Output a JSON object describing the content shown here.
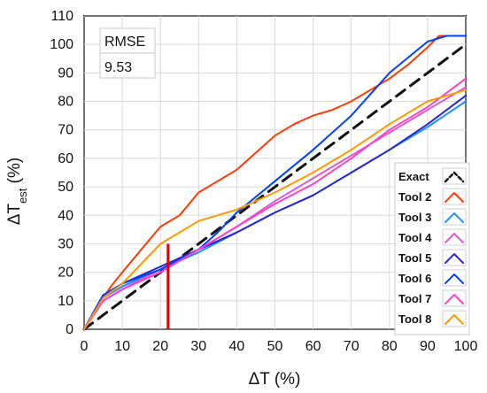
{
  "chart_data": {
    "type": "line",
    "x_label": "ΔT (%)",
    "y_label_prefix": "ΔT",
    "y_label_subscript": "est",
    "y_label_suffix": " (%)",
    "xlim": [
      0,
      100
    ],
    "ylim": [
      0,
      110
    ],
    "x_ticks": [
      0,
      10,
      20,
      30,
      40,
      50,
      60,
      70,
      80,
      90,
      100
    ],
    "y_ticks": [
      0,
      10,
      20,
      30,
      40,
      50,
      60,
      70,
      80,
      90,
      100,
      110
    ],
    "grid": true,
    "legend_position": "bottom-right",
    "rmse_label": "RMSE",
    "rmse_value": "9.53",
    "threshold_marker": {
      "x": 22,
      "y_from": 0,
      "y_to": 30,
      "color": "#e00000"
    },
    "series": [
      {
        "name": "Exact",
        "color": "#111111",
        "dashed": true,
        "x": [
          0,
          100
        ],
        "y": [
          0,
          100
        ]
      },
      {
        "name": "Tool 2",
        "color": "#ff3b00",
        "dashed": false,
        "x": [
          0,
          3,
          7,
          10,
          15,
          20,
          25,
          30,
          35,
          40,
          45,
          50,
          55,
          60,
          65,
          70,
          75,
          80,
          85,
          90,
          93,
          100
        ],
        "y": [
          0,
          7,
          15,
          20,
          28,
          36,
          40,
          48,
          52,
          56,
          62,
          68,
          72,
          75,
          77,
          80,
          84,
          88,
          93,
          99,
          103,
          103
        ]
      },
      {
        "name": "Tool 3",
        "color": "#1e90ff",
        "dashed": false,
        "x": [
          0,
          5,
          10,
          20,
          30,
          40,
          50,
          60,
          70,
          80,
          90,
          100
        ],
        "y": [
          0,
          11,
          15,
          21,
          27,
          34,
          41,
          47,
          55,
          63,
          71,
          80
        ]
      },
      {
        "name": "Tool 4",
        "color": "#d65cd6",
        "dashed": false,
        "x": [
          0,
          5,
          10,
          20,
          30,
          40,
          50,
          60,
          70,
          80,
          90,
          100
        ],
        "y": [
          0,
          10,
          14,
          21,
          28,
          36,
          45,
          53,
          61,
          69,
          77,
          85
        ]
      },
      {
        "name": "Tool 5",
        "color": "#2828cc",
        "dashed": false,
        "x": [
          0,
          5,
          10,
          20,
          30,
          40,
          50,
          60,
          70,
          80,
          90,
          100
        ],
        "y": [
          0,
          12,
          16,
          22,
          28,
          34,
          41,
          47,
          55,
          63,
          72,
          82
        ]
      },
      {
        "name": "Tool 6",
        "color": "#0040ff",
        "dashed": false,
        "x": [
          0,
          5,
          10,
          20,
          30,
          35,
          40,
          50,
          60,
          70,
          80,
          90,
          95,
          100
        ],
        "y": [
          0,
          12,
          16,
          21,
          28,
          34,
          41,
          52,
          63,
          75,
          90,
          101,
          103,
          103
        ]
      },
      {
        "name": "Tool 7",
        "color": "#ff40c8",
        "dashed": false,
        "x": [
          0,
          5,
          10,
          20,
          30,
          40,
          50,
          60,
          70,
          80,
          90,
          100
        ],
        "y": [
          0,
          10,
          14,
          20,
          28,
          36,
          44,
          51,
          60,
          70,
          78,
          88
        ]
      },
      {
        "name": "Tool 8",
        "color": "#ff9900",
        "dashed": false,
        "x": [
          0,
          5,
          10,
          20,
          30,
          40,
          50,
          60,
          70,
          80,
          90,
          100
        ],
        "y": [
          0,
          11,
          16,
          30,
          38,
          42,
          48,
          55,
          63,
          72,
          80,
          84
        ]
      }
    ]
  }
}
